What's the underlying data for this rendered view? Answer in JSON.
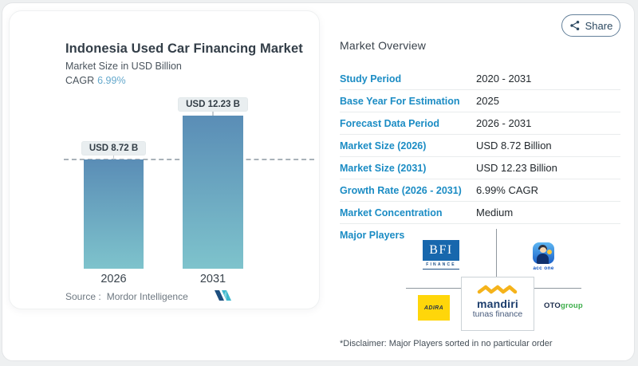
{
  "share_button": {
    "label": "Share"
  },
  "left_card": {
    "title": "Indonesia Used Car Financing Market",
    "subtitle": "Market Size in USD Billion",
    "cagr_label": "CAGR",
    "cagr_value": "6.99%",
    "source_label": "Source :",
    "source_name": "Mordor Intelligence"
  },
  "chart_data": {
    "type": "bar",
    "title": "Indonesia Used Car Financing Market",
    "subtitle": "Market Size in USD Billion",
    "unit": "USD Billion",
    "cagr_percent": 6.99,
    "categories": [
      "2026",
      "2031"
    ],
    "values": [
      8.72,
      12.23
    ],
    "value_labels": [
      "USD 8.72 B",
      "USD 12.23 B"
    ],
    "reference_line": {
      "style": "dashed",
      "at_value": 8.72
    },
    "bar_gradient_top": "#5a8db6",
    "bar_gradient_bottom": "#7ec3cc",
    "gridlines": false,
    "legend": "none"
  },
  "overview": {
    "heading": "Market Overview",
    "rows": [
      {
        "label": "Study Period",
        "value": "2020 - 2031"
      },
      {
        "label": "Base Year For Estimation",
        "value": "2025"
      },
      {
        "label": "Forecast Data Period",
        "value": "2026 - 2031"
      },
      {
        "label": "Market Size (2026)",
        "value": "USD 8.72 Billion"
      },
      {
        "label": "Market Size (2031)",
        "value": "USD 12.23 Billion"
      },
      {
        "label": "Growth Rate (2026 - 2031)",
        "value": "6.99% CAGR"
      },
      {
        "label": "Market Concentration",
        "value": "Medium"
      }
    ],
    "major_players": {
      "label": "Major Players",
      "players": [
        "BFI Finance",
        "ACC ONE",
        "Adira Finance",
        "Mandiri Tunas Finance",
        "OTO Group"
      ]
    },
    "disclaimer": "*Disclaimer: Major Players sorted in no particular order"
  },
  "logos": {
    "bfi": {
      "top": "BFI",
      "bottom": "FINANCE"
    },
    "accone": {
      "caption": "acc one"
    },
    "adira": {
      "text": "ADIRA"
    },
    "mandiri": {
      "line1": "mandiri",
      "line2": "tunas finance"
    },
    "oto": {
      "dark": "OTO",
      "green": "group"
    }
  },
  "colors": {
    "accent_blue": "#1b8cc4",
    "cagr_blue": "#64a8cc",
    "bar_top": "#5a8db6",
    "bar_bottom": "#7ec3cc",
    "share_border": "#64809a"
  }
}
